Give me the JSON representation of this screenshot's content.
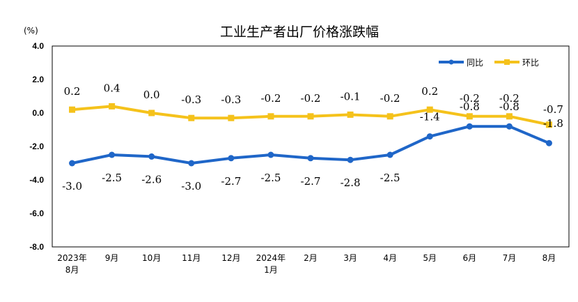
{
  "chart_data": {
    "type": "line",
    "title": "工业生产者出厂价格涨跌幅",
    "unit_label": "(%)",
    "ylim": [
      -8.0,
      4.0
    ],
    "yticks": [
      "4.0",
      "2.0",
      "0.0",
      "-2.0",
      "-4.0",
      "-6.0",
      "-8.0"
    ],
    "ytick_values": [
      4,
      2,
      0,
      -2,
      -4,
      -6,
      -8
    ],
    "categories": [
      [
        "2023年",
        "8月"
      ],
      [
        "9月"
      ],
      [
        "10月"
      ],
      [
        "11月"
      ],
      [
        "12月"
      ],
      [
        "2024年",
        "1月"
      ],
      [
        "2月"
      ],
      [
        "3月"
      ],
      [
        "4月"
      ],
      [
        "5月"
      ],
      [
        "6月"
      ],
      [
        "7月"
      ],
      [
        "8月"
      ]
    ],
    "legend_position": "top-right",
    "grid": false,
    "series": [
      {
        "name": "同比",
        "color": "#1F66C8",
        "values": [
          -3.0,
          -2.5,
          -2.6,
          -3.0,
          -2.7,
          -2.5,
          -2.7,
          -2.8,
          -2.5,
          -1.4,
          -0.8,
          -0.8,
          -1.8
        ],
        "labels": [
          "-3.0",
          "-2.5",
          "-2.6",
          "-3.0",
          "-2.7",
          "-2.5",
          "-2.7",
          "-2.8",
          "-2.5",
          "-1.4",
          "-0.8",
          "-0.8",
          "-1.8"
        ]
      },
      {
        "name": "环比",
        "color": "#F5C21B",
        "values": [
          0.2,
          0.4,
          0.0,
          -0.3,
          -0.3,
          -0.2,
          -0.2,
          -0.1,
          -0.2,
          0.2,
          -0.2,
          -0.2,
          -0.7
        ],
        "labels": [
          "0.2",
          "0.4",
          "0.0",
          "-0.3",
          "-0.3",
          "-0.2",
          "-0.2",
          "-0.1",
          "-0.2",
          "0.2",
          "-0.2",
          "-0.2",
          "-0.7"
        ]
      }
    ]
  }
}
